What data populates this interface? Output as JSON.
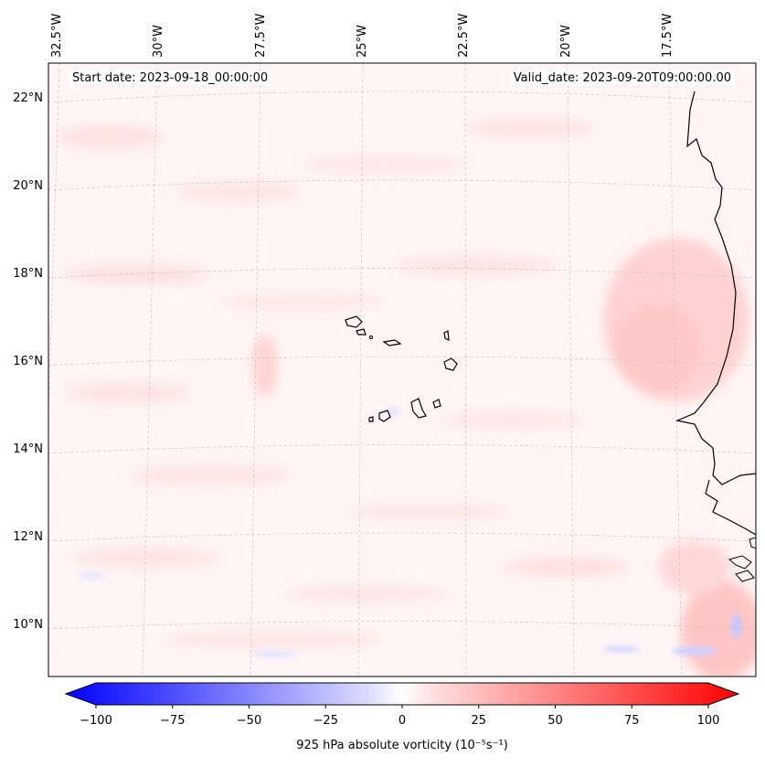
{
  "map": {
    "lon_labels": [
      "32.5°W",
      "30°W",
      "27.5°W",
      "25°W",
      "22.5°W",
      "20°W",
      "17.5°W"
    ],
    "lat_labels": [
      "22°N",
      "20°N",
      "18°N",
      "16°N",
      "14°N",
      "12°N",
      "10°N"
    ],
    "start_date": "Start date: 2023-09-18_00:00:00",
    "valid_date": "Valid_date: 2023-09-20T09:00:00.00"
  },
  "colorbar": {
    "ticks": [
      "−100",
      "−75",
      "−50",
      "−25",
      "0",
      "25",
      "50",
      "75",
      "100"
    ],
    "label": "925 hPa absolute vorticity (10⁻⁵s⁻¹)",
    "min_color": "#0000ff",
    "mid_color": "#ffffff",
    "max_color": "#ff0000"
  }
}
